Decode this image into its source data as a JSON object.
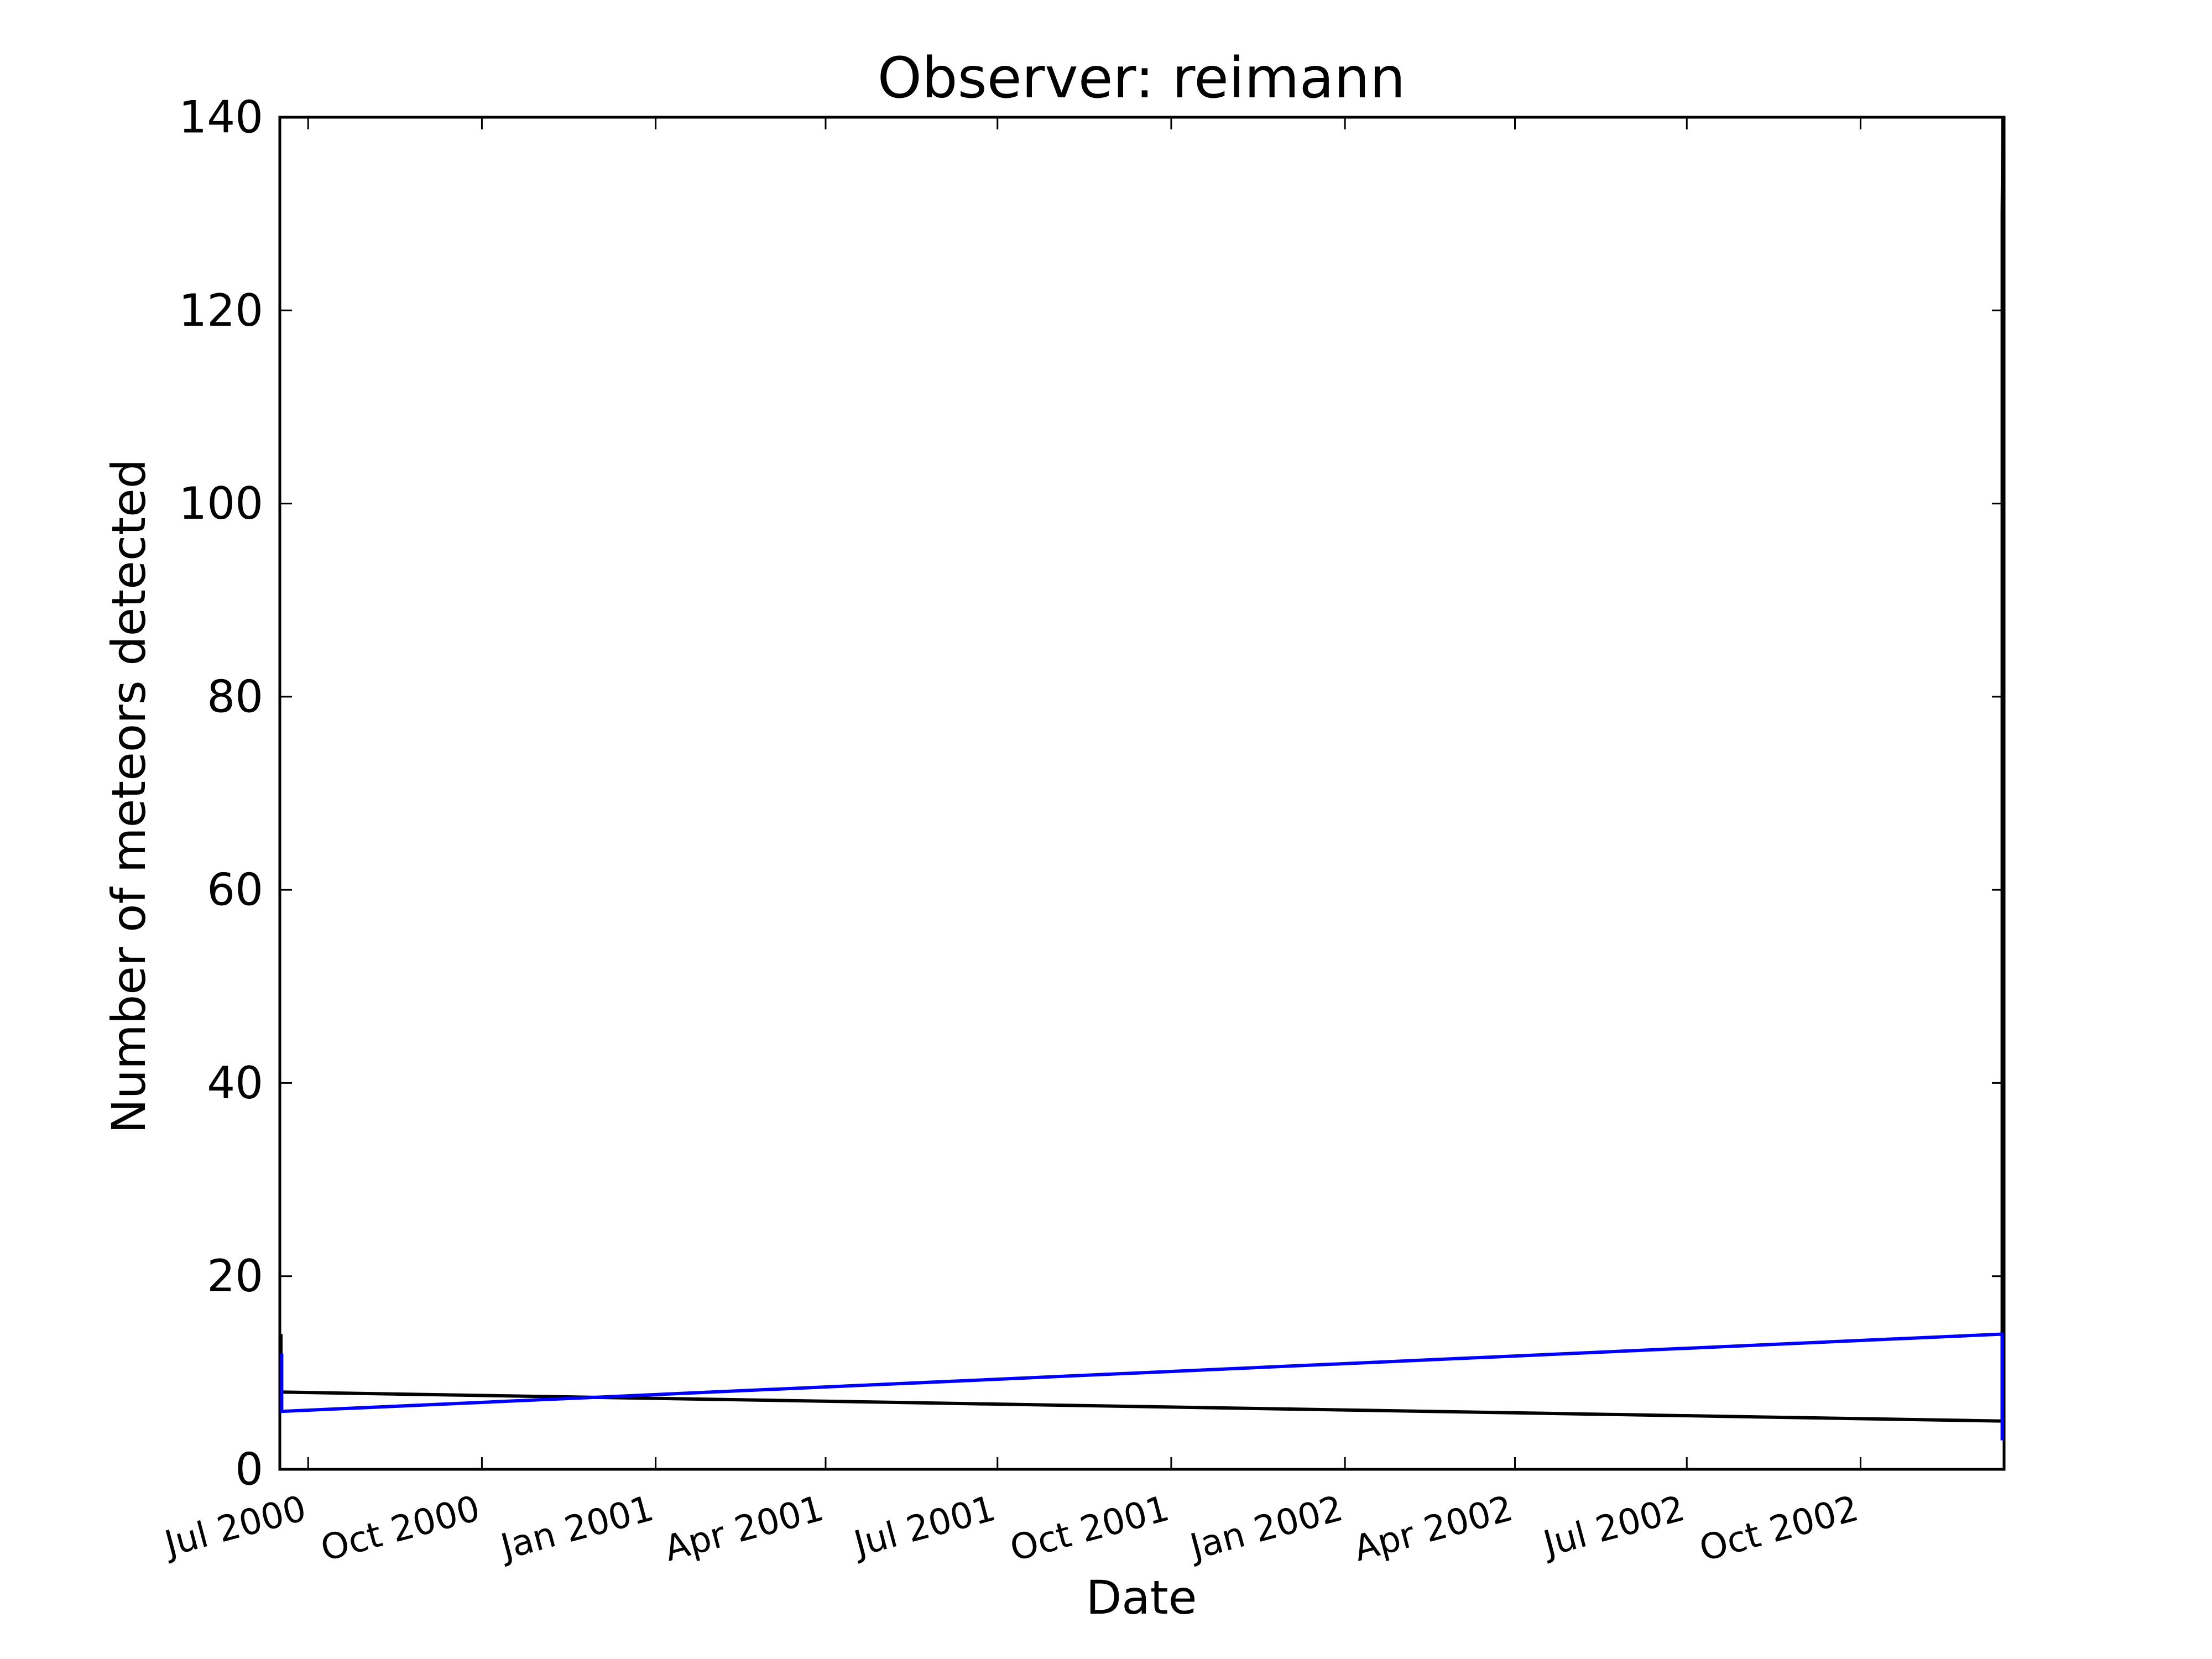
{
  "chart_data": {
    "type": "line",
    "title": "Observer: reimann",
    "xlabel": "Date",
    "ylabel": "Number of meteors detected",
    "xlim": [
      "2000-06-16",
      "2002-12-16"
    ],
    "ylim": [
      0,
      140
    ],
    "grid": false,
    "legend": "none",
    "x_ticks": [
      "2000-07-01",
      "2000-10-01",
      "2001-01-01",
      "2001-04-01",
      "2001-07-01",
      "2001-10-01",
      "2002-01-01",
      "2002-04-01",
      "2002-07-01",
      "2002-10-01"
    ],
    "x_tick_labels": [
      "Jul 2000",
      "Oct 2000",
      "Jan 2001",
      "Apr 2001",
      "Jul 2001",
      "Oct 2001",
      "Jan 2002",
      "Apr 2002",
      "Jul 2002",
      "Oct 2002"
    ],
    "y_ticks": [
      0,
      20,
      40,
      60,
      80,
      100,
      120,
      140
    ],
    "y_tick_labels": [
      "0",
      "20",
      "40",
      "60",
      "80",
      "100",
      "120",
      "140"
    ],
    "series": [
      {
        "color": "#000000",
        "x": [
          "2000-06-16",
          "2000-06-16",
          "2002-12-15",
          "2002-12-15",
          "2002-12-16",
          "2002-12-16"
        ],
        "y": [
          14,
          8,
          5,
          130,
          140,
          4
        ]
      },
      {
        "color": "#0000ff",
        "x": [
          "2000-06-17",
          "2000-06-17",
          "2002-12-15",
          "2002-12-15"
        ],
        "y": [
          12,
          6,
          14,
          3
        ]
      }
    ]
  }
}
